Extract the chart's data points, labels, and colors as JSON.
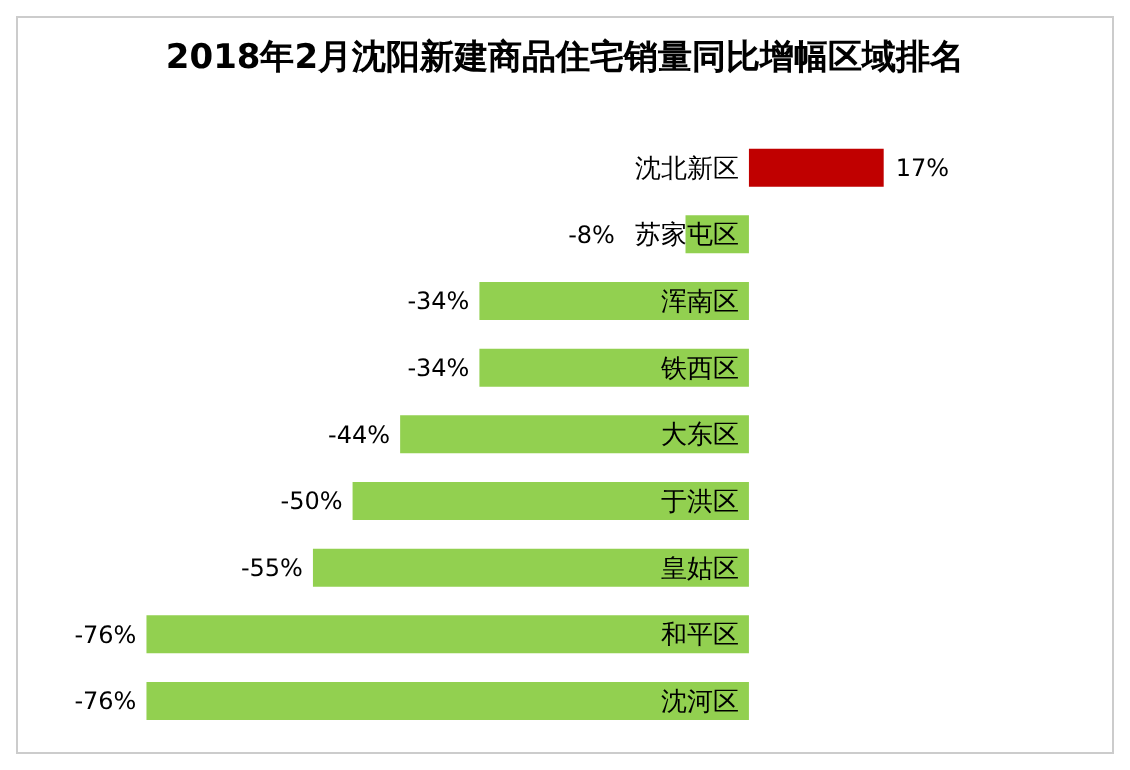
{
  "chart_data": {
    "type": "bar",
    "orientation": "horizontal",
    "title": "2018年2月沈阳新建商品住宅销量同比增幅区域排名",
    "categories": [
      "沈北新区",
      "苏家屯区",
      "浑南区",
      "铁西区",
      "大东区",
      "于洪区",
      "皇姑区",
      "和平区",
      "沈河区"
    ],
    "values": [
      17,
      -8,
      -34,
      -34,
      -44,
      -50,
      -55,
      -76,
      -76
    ],
    "colors": [
      "#c00000",
      "#92d050",
      "#92d050",
      "#92d050",
      "#92d050",
      "#92d050",
      "#92d050",
      "#92d050",
      "#92d050"
    ],
    "value_labels": [
      "17%",
      "-8%",
      "-34%",
      "-34%",
      "-44%",
      "-50%",
      "-55%",
      "-76%",
      "-76%"
    ],
    "grid": false,
    "legend": false
  }
}
